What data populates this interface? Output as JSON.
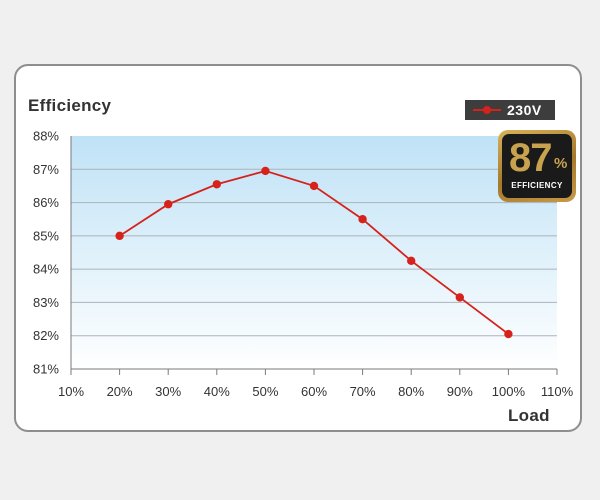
{
  "chart_data": {
    "type": "line",
    "ylabel": "Efficiency",
    "xlabel": "Load",
    "x": [
      20,
      30,
      40,
      50,
      60,
      70,
      80,
      90,
      100
    ],
    "series": [
      {
        "name": "230V",
        "color": "#d6221b",
        "values": [
          85.0,
          85.95,
          86.55,
          86.95,
          86.5,
          85.5,
          84.25,
          83.15,
          82.05
        ]
      }
    ],
    "xlim": [
      10,
      110
    ],
    "ylim": [
      81,
      88
    ],
    "x_ticks": [
      "10%",
      "20%",
      "30%",
      "40%",
      "50%",
      "60%",
      "70%",
      "80%",
      "90%",
      "100%",
      "110%"
    ],
    "y_ticks": [
      "88%",
      "87%",
      "86%",
      "85%",
      "84%",
      "83%",
      "82%",
      "81%"
    ],
    "grid": true,
    "legend_position": "top-right"
  },
  "badge": {
    "number": "87",
    "percent": "%",
    "label": "EFFICIENCY",
    "colors": {
      "gold": "#c9a24f",
      "background": "#1a1a1a"
    }
  }
}
